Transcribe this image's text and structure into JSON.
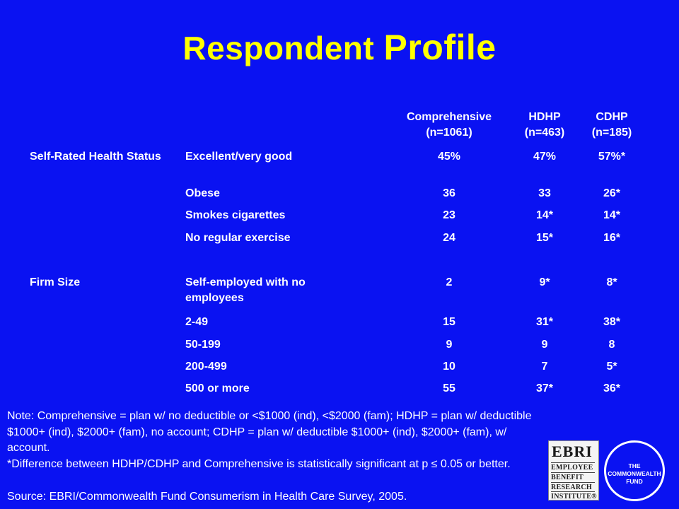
{
  "title": {
    "part1": "Respondent",
    "part2": "Profile"
  },
  "columns": [
    {
      "line1": "Comprehensive",
      "line2": "(n=1061)"
    },
    {
      "line1": "HDHP",
      "line2": "(n=463)"
    },
    {
      "line1": "CDHP",
      "line2": "(n=185)"
    }
  ],
  "rows": [
    {
      "category": "Self-Rated Health Status",
      "label": "Excellent/very good",
      "values": [
        "45%",
        "47%",
        "57%*"
      ]
    },
    {
      "category": "",
      "label": "Obese",
      "values": [
        "36",
        "33",
        "26*"
      ]
    },
    {
      "category": "",
      "label": "Smokes cigarettes",
      "values": [
        "23",
        "14*",
        "14*"
      ]
    },
    {
      "category": "",
      "label": "No regular exercise",
      "values": [
        "24",
        "15*",
        "16*"
      ]
    },
    {
      "category": "Firm Size",
      "label": "Self-employed with no employees",
      "values": [
        "2",
        "9*",
        "8*"
      ]
    },
    {
      "category": "",
      "label": "2-49",
      "values": [
        "15",
        "31*",
        "38*"
      ]
    },
    {
      "category": "",
      "label": "50-199",
      "values": [
        "9",
        "9",
        "8"
      ]
    },
    {
      "category": "",
      "label": "200-499",
      "values": [
        "10",
        "7",
        "5*"
      ]
    },
    {
      "category": "",
      "label": "500 or more",
      "values": [
        "55",
        "37*",
        "36*"
      ]
    }
  ],
  "notes": {
    "line1": "Note: Comprehensive = plan w/ no deductible or <$1000 (ind), <$2000 (fam); HDHP = plan w/ deductible $1000+ (ind), $2000+ (fam), no account; CDHP = plan w/ deductible $1000+ (ind), $2000+ (fam), w/ account.",
    "line2": "*Difference between HDHP/CDHP and Comprehensive is statistically significant at p ≤ 0.05 or better."
  },
  "source": "Source: EBRI/Commonwealth Fund Consumerism in Health Care Survey, 2005.",
  "logos": {
    "ebri": {
      "word": "EBRI",
      "lines": [
        "EMPLOYEE",
        "BENEFIT",
        "RESEARCH",
        "INSTITUTE®"
      ]
    },
    "commonwealth": {
      "lines": [
        "THE",
        "COMMONWEALTH",
        "FUND"
      ]
    }
  },
  "colors": {
    "background": "#0a12f2",
    "title": "#ffff00",
    "text": "#ffffff"
  }
}
